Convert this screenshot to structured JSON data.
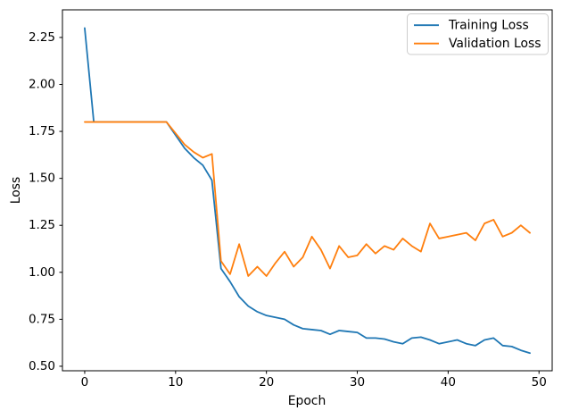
{
  "chart_data": {
    "type": "line",
    "title": "",
    "xlabel": "Epoch",
    "ylabel": "Loss",
    "grid": false,
    "legend_position": "upper right",
    "background_color": "#ffffff",
    "axis_color": "#000000",
    "legend_border_color": "#cccccc",
    "xlim": [
      -2.45,
      51.45
    ],
    "ylim": [
      0.476,
      2.397
    ],
    "xticks": [
      0,
      10,
      20,
      30,
      40,
      50
    ],
    "yticks": [
      0.5,
      0.75,
      1.0,
      1.25,
      1.5,
      1.75,
      2.0,
      2.25
    ],
    "x": [
      0,
      1,
      2,
      3,
      4,
      5,
      6,
      7,
      8,
      9,
      10,
      11,
      12,
      13,
      14,
      15,
      16,
      17,
      18,
      19,
      20,
      21,
      22,
      23,
      24,
      25,
      26,
      27,
      28,
      29,
      30,
      31,
      32,
      33,
      34,
      35,
      36,
      37,
      38,
      39,
      40,
      41,
      42,
      43,
      44,
      45,
      46,
      47,
      48,
      49
    ],
    "series": [
      {
        "name": "Training Loss",
        "color": "#1f77b4",
        "values": [
          2.3,
          1.8,
          1.8,
          1.8,
          1.8,
          1.8,
          1.8,
          1.8,
          1.8,
          1.8,
          1.73,
          1.66,
          1.61,
          1.57,
          1.49,
          1.02,
          0.95,
          0.87,
          0.82,
          0.79,
          0.77,
          0.76,
          0.75,
          0.72,
          0.7,
          0.695,
          0.69,
          0.67,
          0.69,
          0.685,
          0.68,
          0.65,
          0.65,
          0.645,
          0.63,
          0.62,
          0.65,
          0.655,
          0.64,
          0.62,
          0.63,
          0.64,
          0.62,
          0.61,
          0.64,
          0.65,
          0.61,
          0.605,
          0.585,
          0.57
        ]
      },
      {
        "name": "Validation Loss",
        "color": "#ff7f0e",
        "values": [
          1.8,
          1.8,
          1.8,
          1.8,
          1.8,
          1.8,
          1.8,
          1.8,
          1.8,
          1.8,
          1.74,
          1.68,
          1.64,
          1.61,
          1.63,
          1.06,
          0.99,
          1.15,
          0.98,
          1.03,
          0.98,
          1.05,
          1.11,
          1.03,
          1.08,
          1.19,
          1.12,
          1.02,
          1.14,
          1.08,
          1.09,
          1.15,
          1.1,
          1.14,
          1.12,
          1.18,
          1.14,
          1.11,
          1.26,
          1.18,
          1.19,
          1.2,
          1.21,
          1.17,
          1.26,
          1.28,
          1.19,
          1.21,
          1.25,
          1.21
        ]
      }
    ]
  }
}
